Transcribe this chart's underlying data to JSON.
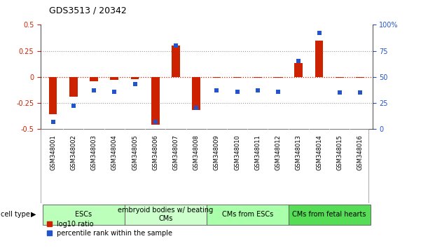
{
  "title": "GDS3513 / 20342",
  "samples": [
    "GSM348001",
    "GSM348002",
    "GSM348003",
    "GSM348004",
    "GSM348005",
    "GSM348006",
    "GSM348007",
    "GSM348008",
    "GSM348009",
    "GSM348010",
    "GSM348011",
    "GSM348012",
    "GSM348013",
    "GSM348014",
    "GSM348015",
    "GSM348016"
  ],
  "log10_ratio": [
    -0.36,
    -0.19,
    -0.04,
    -0.03,
    -0.02,
    -0.46,
    0.3,
    -0.32,
    -0.01,
    -0.01,
    -0.01,
    -0.01,
    0.13,
    0.35,
    -0.01,
    -0.01
  ],
  "percentile_rank": [
    7,
    22,
    37,
    36,
    43,
    7,
    80,
    20,
    37,
    36,
    37,
    36,
    65,
    92,
    35,
    35
  ],
  "ylim_left": [
    -0.5,
    0.5
  ],
  "ylim_right": [
    0,
    100
  ],
  "yticks_left": [
    -0.5,
    -0.25,
    0,
    0.25,
    0.5
  ],
  "yticks_right": [
    0,
    25,
    50,
    75,
    100
  ],
  "bar_color": "#CC2200",
  "dot_color": "#2255CC",
  "red_dotted_color": "#CC2200",
  "gray_dotted_color": "#999999",
  "cell_type_groups": [
    {
      "label": "ESCs",
      "start": 0,
      "end": 3,
      "color": "#BBFFBB"
    },
    {
      "label": "embryoid bodies w/ beating\nCMs",
      "start": 4,
      "end": 7,
      "color": "#CCFFCC"
    },
    {
      "label": "CMs from ESCs",
      "start": 8,
      "end": 11,
      "color": "#AAFFAA"
    },
    {
      "label": "CMs from fetal hearts",
      "start": 12,
      "end": 15,
      "color": "#55DD55"
    }
  ],
  "background_color": "#FFFFFF",
  "sample_label_bg": "#CCCCCC",
  "bar_width": 0.4,
  "dot_size": 4.5,
  "title_fontsize": 9,
  "axis_fontsize": 7,
  "sample_fontsize": 6,
  "cell_type_fontsize": 7,
  "legend_fontsize": 7
}
